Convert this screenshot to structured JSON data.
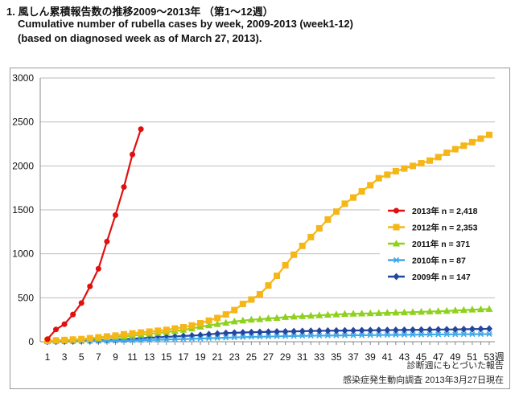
{
  "header": {
    "title_ja": "1.  風しん累積報告数の推移2009～2013年 （第1～12週）",
    "title_en": "Cumulative number of rubella cases by week, 2009-2013 (week1-12)",
    "subtitle_en": "(based on diagnosed week as of March 27, 2013)."
  },
  "footnotes": {
    "line1": "診断週にもとづいた報告",
    "line2": "感染症発生動向調査 2013年3月27日現在"
  },
  "chart_data": {
    "type": "line",
    "title": "Cumulative number of rubella cases by week, 2009-2013 (week1-12)",
    "xlabel": "週",
    "ylabel": "",
    "xlim": [
      1,
      53
    ],
    "ylim": [
      0,
      3000
    ],
    "yticks": [
      0,
      500,
      1000,
      1500,
      2000,
      2500,
      3000
    ],
    "xticks": [
      1,
      3,
      5,
      7,
      9,
      11,
      13,
      15,
      17,
      19,
      21,
      23,
      25,
      27,
      29,
      31,
      33,
      35,
      37,
      39,
      41,
      43,
      45,
      47,
      49,
      51,
      53
    ],
    "xtick_suffix_last": "週",
    "grid": "horizontal",
    "legend_position": "right",
    "series": [
      {
        "name": "2013年 n = 2,418",
        "color": "#e01010",
        "marker": "circle",
        "values": [
          30,
          140,
          200,
          310,
          440,
          630,
          830,
          1140,
          1440,
          1760,
          2130,
          2418
        ]
      },
      {
        "name": "2012年 n = 2,353",
        "color": "#f5b618",
        "marker": "square",
        "values": [
          10,
          15,
          20,
          25,
          30,
          40,
          50,
          60,
          70,
          85,
          95,
          105,
          115,
          125,
          135,
          150,
          165,
          185,
          210,
          240,
          270,
          310,
          360,
          430,
          480,
          540,
          640,
          750,
          870,
          990,
          1090,
          1190,
          1290,
          1390,
          1480,
          1570,
          1640,
          1710,
          1780,
          1860,
          1900,
          1940,
          1970,
          2000,
          2030,
          2060,
          2100,
          2150,
          2190,
          2230,
          2270,
          2310,
          2353
        ]
      },
      {
        "name": "2011年 n = 371",
        "color": "#8fd11e",
        "marker": "triangle",
        "values": [
          5,
          10,
          15,
          20,
          25,
          30,
          40,
          50,
          55,
          60,
          70,
          80,
          90,
          100,
          110,
          120,
          135,
          150,
          170,
          185,
          200,
          215,
          230,
          240,
          250,
          255,
          265,
          270,
          280,
          285,
          290,
          295,
          300,
          305,
          310,
          315,
          318,
          320,
          322,
          325,
          328,
          330,
          333,
          336,
          340,
          343,
          346,
          350,
          355,
          360,
          365,
          368,
          371
        ]
      },
      {
        "name": "2010年 n = 87",
        "color": "#3fa9e8",
        "marker": "star",
        "values": [
          1,
          2,
          3,
          4,
          5,
          6,
          8,
          10,
          12,
          14,
          16,
          18,
          20,
          22,
          25,
          28,
          30,
          33,
          36,
          40,
          43,
          46,
          49,
          52,
          55,
          57,
          59,
          61,
          63,
          65,
          67,
          68,
          69,
          70,
          71,
          72,
          73,
          74,
          75,
          76,
          77,
          78,
          79,
          80,
          81,
          82,
          83,
          84,
          84,
          85,
          86,
          86,
          87
        ]
      },
      {
        "name": "2009年 n = 147",
        "color": "#23469e",
        "marker": "diamond",
        "values": [
          2,
          4,
          6,
          8,
          10,
          13,
          16,
          20,
          25,
          30,
          35,
          40,
          45,
          50,
          55,
          60,
          65,
          70,
          75,
          85,
          92,
          98,
          102,
          105,
          108,
          110,
          112,
          114,
          116,
          118,
          120,
          122,
          124,
          125,
          126,
          127,
          128,
          129,
          130,
          131,
          132,
          133,
          134,
          135,
          136,
          137,
          138,
          139,
          140,
          142,
          144,
          145,
          147
        ]
      }
    ]
  }
}
